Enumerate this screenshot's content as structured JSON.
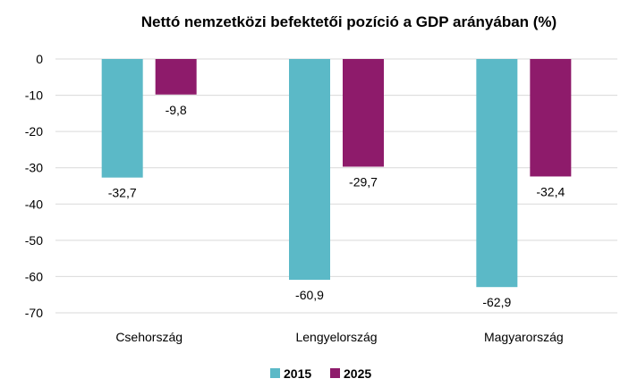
{
  "chart_data": {
    "type": "bar",
    "title": "Nettó nemzetközi befektetői pozíció a GDP arányában (%)",
    "categories": [
      "Csehország",
      "Lengyelország",
      "Magyarország"
    ],
    "series": [
      {
        "name": "2015",
        "color": "#5BB9C7",
        "values": [
          -32.7,
          -60.9,
          -62.9
        ],
        "labels": [
          "-32,7",
          "-60,9",
          "-62,9"
        ]
      },
      {
        "name": "2025",
        "color": "#8E1B6B",
        "values": [
          -9.8,
          -29.7,
          -32.4
        ],
        "labels": [
          "-9,8",
          "-29,7",
          "-32,4"
        ]
      }
    ],
    "yticks": [
      "0",
      "-10",
      "-20",
      "-30",
      "-40",
      "-50",
      "-60",
      "-70"
    ],
    "ylim": [
      -70,
      0
    ],
    "grid": true,
    "legend": "bottom",
    "xlabel": "",
    "ylabel": ""
  }
}
